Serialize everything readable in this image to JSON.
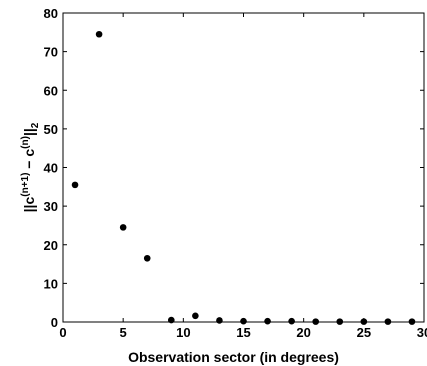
{
  "chart_data": {
    "type": "scatter",
    "title": "",
    "xlabel": "Observation sector (in degrees)",
    "ylabel": {
      "parts": [
        "||c",
        "(n+1)",
        " − c",
        "(n)",
        "||",
        "2"
      ]
    },
    "xlim": [
      0,
      30
    ],
    "ylim": [
      0,
      80
    ],
    "xticks": [
      "0",
      "5",
      "10",
      "15",
      "20",
      "25",
      "30"
    ],
    "yticks": [
      "0",
      "10",
      "20",
      "30",
      "40",
      "50",
      "60",
      "70",
      "80"
    ],
    "grid": false,
    "legend": "none",
    "marker_color": "#000000",
    "x": [
      1,
      3,
      5,
      7,
      9,
      11,
      13,
      15,
      17,
      19,
      21,
      23,
      25,
      27,
      29
    ],
    "y": [
      35.5,
      74.5,
      24.5,
      16.5,
      0.5,
      1.6,
      0.4,
      0.2,
      0.2,
      0.2,
      0.1,
      0.1,
      0.1,
      0.1,
      0.1
    ]
  }
}
